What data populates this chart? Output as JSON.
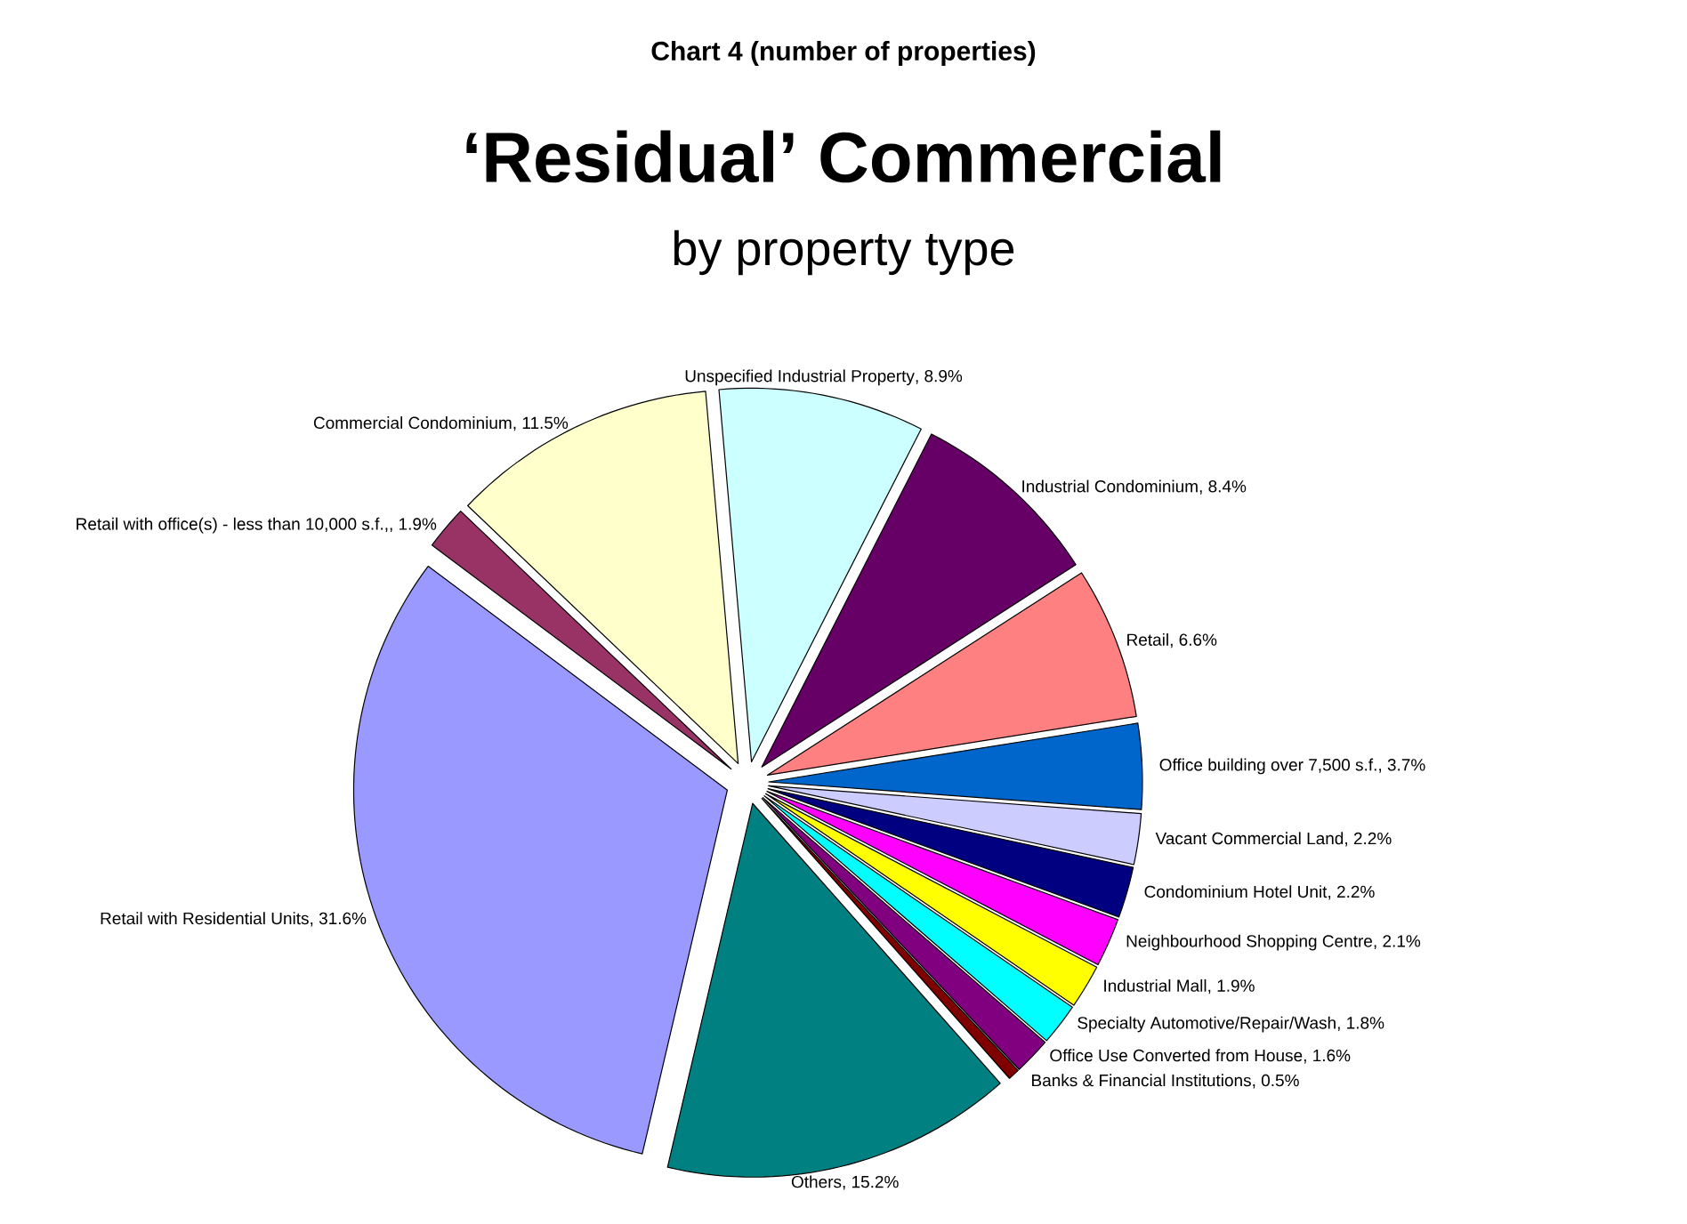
{
  "chart_data": {
    "type": "pie",
    "title": "‘Residual’ Commercial",
    "subtitle": "by property type",
    "annotations": [
      "Chart 4 (number of properties)"
    ],
    "categories": [
      "Unspecified Industrial Property",
      "Industrial Condominium",
      "Retail",
      "Office building over 7,500 s.f.",
      "Vacant Commercial Land",
      "Condominium Hotel Unit",
      "Neighbourhood Shopping Centre",
      "Industrial Mall",
      "Specialty Automotive/Repair/Wash",
      "Office Use Converted from House",
      "Banks & Financial Institutions",
      "Others",
      "Retail with Residential Units",
      "Retail with office(s) - less than 10,000 s.f.",
      "Commercial Condominium"
    ],
    "values": [
      8.9,
      8.4,
      6.6,
      3.7,
      2.2,
      2.2,
      2.1,
      1.9,
      1.8,
      1.6,
      0.5,
      15.2,
      31.6,
      1.9,
      11.5
    ],
    "value_labels": [
      ", 8.9%",
      ", 8.4%",
      ", 6.6%",
      ", 3.7%",
      ", 2.2%",
      ", 2.2%",
      ", 2.1%",
      ", 1.9%",
      ", 1.8%",
      ", 1.6%",
      ", 0.5%",
      ", 15.2%",
      ", 31.6%",
      ",, 1.9%",
      ", 11.5%"
    ],
    "colors": [
      "#ccffff",
      "#660066",
      "#ff8080",
      "#0066cc",
      "#ccccff",
      "#000080",
      "#ff00ff",
      "#ffff00",
      "#00ffff",
      "#800080",
      "#800000",
      "#008080",
      "#9999ff",
      "#993366",
      "#ffffcc"
    ]
  }
}
